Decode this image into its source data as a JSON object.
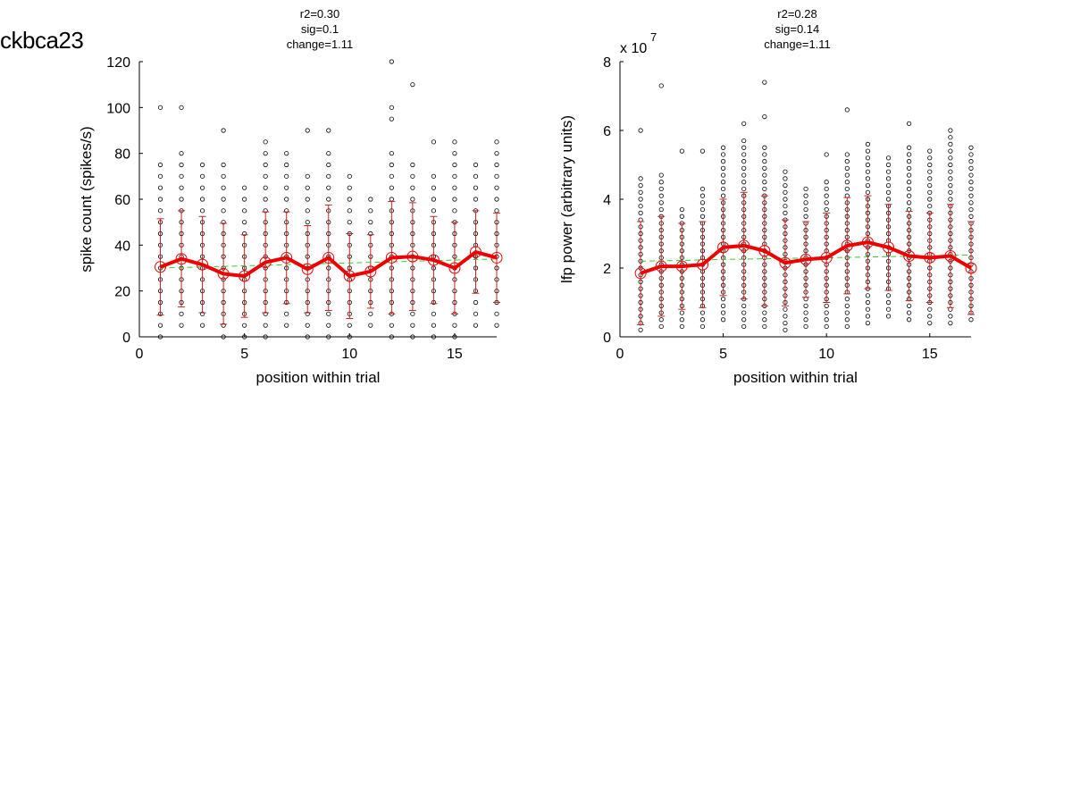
{
  "figure_label": "ckbca23",
  "chart_data": [
    {
      "type": "scatter",
      "title_lines": [
        "r2=0.30",
        "sig=0.1",
        "change=1.11"
      ],
      "xlabel": "position within trial",
      "ylabel": "spike count (spikes/s)",
      "exponent_label": "",
      "xlim": [
        0,
        17
      ],
      "ylim": [
        0,
        120
      ],
      "xticks": [
        0,
        5,
        10,
        15
      ],
      "yticks": [
        0,
        20,
        40,
        60,
        80,
        100,
        120
      ],
      "point_spacing": 5,
      "grid": false,
      "positions": [
        1,
        2,
        3,
        4,
        5,
        6,
        7,
        8,
        9,
        10,
        11,
        12,
        13,
        14,
        15,
        16,
        17
      ],
      "mean": [
        30.5,
        34,
        31.5,
        27.5,
        26.5,
        32.5,
        34.5,
        29.5,
        34.5,
        26.5,
        28.5,
        34.5,
        35,
        33.5,
        30,
        37,
        34.5
      ],
      "sd": [
        21,
        21,
        21,
        22,
        18,
        22,
        20,
        19,
        23,
        18.5,
        16,
        24.5,
        23.5,
        19,
        20,
        18,
        19.5
      ],
      "trend": [
        30,
        30.2,
        30.5,
        30.7,
        31,
        31.2,
        31.5,
        31.7,
        32,
        32.2,
        32.5,
        32.7,
        33,
        33.2,
        33.5,
        33.7,
        34
      ],
      "points_range": [
        [
          0,
          75
        ],
        [
          5,
          80
        ],
        [
          5,
          75
        ],
        [
          0,
          75
        ],
        [
          0,
          65
        ],
        [
          0,
          85
        ],
        [
          5,
          80
        ],
        [
          0,
          70
        ],
        [
          0,
          80
        ],
        [
          0,
          70
        ],
        [
          5,
          60
        ],
        [
          0,
          80
        ],
        [
          0,
          75
        ],
        [
          0,
          70
        ],
        [
          0,
          85
        ],
        [
          5,
          75
        ],
        [
          5,
          85
        ]
      ],
      "outliers": [
        [
          1,
          100
        ],
        [
          2,
          100
        ],
        [
          4,
          90
        ],
        [
          8,
          90
        ],
        [
          9,
          90
        ],
        [
          12,
          120
        ],
        [
          12,
          100
        ],
        [
          12,
          95
        ],
        [
          13,
          110
        ],
        [
          14,
          85
        ]
      ],
      "colors": {
        "mean_line": "#ee0000",
        "errorbar": "#cc2222",
        "trend": "#33cc33",
        "points": "#000000"
      }
    },
    {
      "type": "scatter",
      "title_lines": [
        "r2=0.28",
        "sig=0.14",
        "change=1.11"
      ],
      "xlabel": "position within trial",
      "ylabel": "lfp power (arbitrary units)",
      "exponent_label": "x 10",
      "exponent_power": "7",
      "xlim": [
        0,
        17
      ],
      "ylim": [
        0,
        8
      ],
      "xticks": [
        0,
        5,
        10,
        15
      ],
      "yticks": [
        0,
        2,
        4,
        6,
        8
      ],
      "point_spacing": 0.2,
      "grid": false,
      "positions": [
        1,
        2,
        3,
        4,
        5,
        6,
        7,
        8,
        9,
        10,
        11,
        12,
        13,
        14,
        15,
        16,
        17
      ],
      "mean": [
        1.85,
        2.05,
        2.05,
        2.1,
        2.6,
        2.65,
        2.5,
        2.15,
        2.25,
        2.3,
        2.65,
        2.75,
        2.6,
        2.35,
        2.3,
        2.35,
        2.0
      ],
      "sd": [
        1.5,
        1.45,
        1.25,
        1.25,
        1.4,
        1.55,
        1.6,
        1.25,
        1.1,
        1.3,
        1.4,
        1.35,
        1.25,
        1.3,
        1.3,
        1.5,
        1.35
      ],
      "trend": [
        2.2,
        2.21,
        2.22,
        2.24,
        2.25,
        2.26,
        2.27,
        2.28,
        2.29,
        2.3,
        2.31,
        2.32,
        2.33,
        2.34,
        2.35,
        2.37,
        2.38
      ],
      "points_range": [
        [
          0.2,
          4.6
        ],
        [
          0.3,
          4.8
        ],
        [
          0.3,
          3.8
        ],
        [
          0.3,
          4.3
        ],
        [
          0.5,
          5.6
        ],
        [
          0.3,
          5.8
        ],
        [
          0.3,
          5.5
        ],
        [
          0.2,
          4.9
        ],
        [
          0.3,
          4.4
        ],
        [
          0.3,
          4.5
        ],
        [
          0.3,
          5.4
        ],
        [
          0.4,
          5.6
        ],
        [
          0.6,
          5.2
        ],
        [
          0.5,
          5.5
        ],
        [
          0.4,
          5.4
        ],
        [
          0.4,
          5.9
        ],
        [
          0.5,
          5.5
        ]
      ],
      "outliers": [
        [
          1,
          6.0
        ],
        [
          2,
          7.3
        ],
        [
          3,
          5.4
        ],
        [
          4,
          5.4
        ],
        [
          6,
          6.2
        ],
        [
          7,
          7.4
        ],
        [
          7,
          6.4
        ],
        [
          10,
          5.3
        ],
        [
          11,
          6.6
        ],
        [
          14,
          6.2
        ],
        [
          16,
          6.0
        ]
      ],
      "colors": {
        "mean_line": "#ee0000",
        "errorbar": "#cc2222",
        "trend": "#33cc33",
        "points": "#000000"
      }
    }
  ]
}
